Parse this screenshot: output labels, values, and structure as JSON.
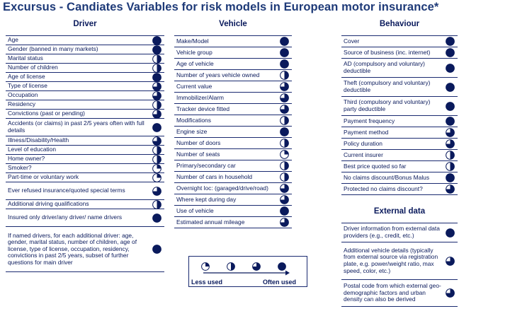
{
  "title": "Excursus - Candiates Variables for risk models in European motor insurance*",
  "colors": {
    "ink": "#0a1a5c",
    "title": "#1e3a78",
    "pie_fill": "#0a1a5c"
  },
  "driver": {
    "heading": "Driver",
    "items": [
      {
        "label": "Age",
        "level": 1
      },
      {
        "label": "Gender (banned in many markets)",
        "level": 1
      },
      {
        "label": "Marital status",
        "level": 0.5
      },
      {
        "label": "Number of children",
        "level": 0.5
      },
      {
        "label": "Age of license",
        "level": 1
      },
      {
        "label": "Type of license",
        "level": 0.75
      },
      {
        "label": "Occupation",
        "level": 0.75
      },
      {
        "label": "Residency",
        "level": 0.5
      },
      {
        "label": "Convictions (past or pending)",
        "level": 0.75
      },
      {
        "label": "Accidents (or claims) in past 2/5 years often with full details",
        "level": 1
      },
      {
        "label": "Illness/Disability/Health",
        "level": 0.75
      },
      {
        "label": "Level of education",
        "level": 0.5
      },
      {
        "label": "Home owner?",
        "level": 0.5
      },
      {
        "label": "Smoker?",
        "level": 0.25
      },
      {
        "label": "Part-time or voluntary work",
        "level": 0.25
      },
      {
        "label": "Ever refused insurance/quoted special terms",
        "level": 0.75
      },
      {
        "label": "Additional driving qualifications",
        "level": 0.5
      },
      {
        "label": "Insured only driver/any driver/ name drivers",
        "level": 1
      },
      {
        "label": "If named drivers, for each additional driver: age, gender, marital status, number of children, age of license, type of license, occupation, residency, convictions in past 2/5 years, subset of further questions for main driver",
        "level": 1
      }
    ]
  },
  "vehicle": {
    "heading": "Vehicle",
    "items": [
      {
        "label": "Make/Model",
        "level": 1
      },
      {
        "label": "Vehicle group",
        "level": 1
      },
      {
        "label": "Age of vehicle",
        "level": 1
      },
      {
        "label": "Number of years vehicle owned",
        "level": 0.5
      },
      {
        "label": "Current value",
        "level": 0.75
      },
      {
        "label": "Immobilizer/Alarm",
        "level": 0.75
      },
      {
        "label": "Tracker device fitted",
        "level": 0.75
      },
      {
        "label": "Modifications",
        "level": 0.5
      },
      {
        "label": "Engine size",
        "level": 1
      },
      {
        "label": "Number of doors",
        "level": 0.5
      },
      {
        "label": "Number of seats",
        "level": 0.25
      },
      {
        "label": "Primary/secondary car",
        "level": 0.5
      },
      {
        "label": "Number of cars in household",
        "level": 0.5
      },
      {
        "label": "Overnight loc: (garaged/drive/road)",
        "level": 0.75
      },
      {
        "label": "Where kept during day",
        "level": 0.75
      },
      {
        "label": "Use of vehicle",
        "level": 1
      },
      {
        "label": "Estimated annual mileage",
        "level": 0.75
      }
    ]
  },
  "behaviour": {
    "heading": "Behaviour",
    "items": [
      {
        "label": "Cover",
        "level": 1
      },
      {
        "label": "Source of business (inc. internet)",
        "level": 1
      },
      {
        "label": "AD (compulsory and voluntary) deductible",
        "level": 1
      },
      {
        "label": "Theft (compulsory and voluntary) deductible",
        "level": 1
      },
      {
        "label": "Third (compulsory and voluntary) party deductible",
        "level": 1
      },
      {
        "label": "Payment frequency",
        "level": 1
      },
      {
        "label": "Payment method",
        "level": 0.75
      },
      {
        "label": "Policy duration",
        "level": 0.75
      },
      {
        "label": "Current insurer",
        "level": 0.5
      },
      {
        "label": "Best price quoted so far",
        "level": 0.5
      },
      {
        "label": "No claims discount/Bonus Malus",
        "level": 1
      },
      {
        "label": "Protected no claims discount?",
        "level": 0.75
      }
    ]
  },
  "external": {
    "heading": "External data",
    "items": [
      {
        "label": "Driver information from external data providers (e.g., credit, etc.)",
        "level": 1
      },
      {
        "label": "Additional vehicle details (typically from external source via registration plate, e.g. power/weight ratio, max speed, color, etc.)",
        "level": 0.75
      },
      {
        "label": "Postal code from which external geo-demographic factors and urban density can also be derived",
        "level": 0.75
      }
    ]
  },
  "legend": {
    "less_label": "Less used",
    "often_label": "Often used",
    "levels": [
      0.25,
      0.5,
      0.75,
      1
    ]
  }
}
